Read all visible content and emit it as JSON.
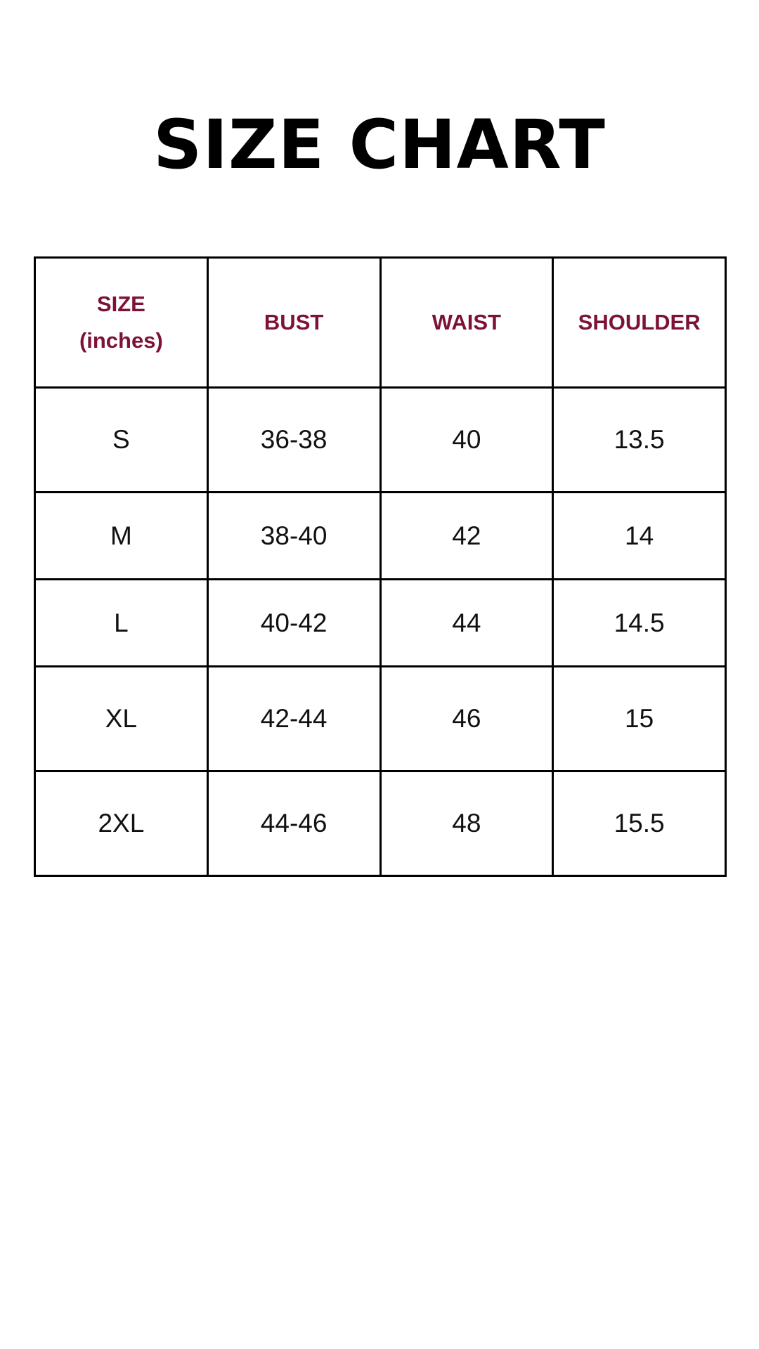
{
  "title": "SIZE CHART",
  "accent_color": "#7d1235",
  "table": {
    "headers": [
      [
        "SIZE",
        "(inches)"
      ],
      [
        "BUST"
      ],
      [
        "WAIST"
      ],
      [
        "SHOULDER"
      ]
    ],
    "rows": [
      [
        "S",
        "36-38",
        "40",
        "13.5"
      ],
      [
        "M",
        "38-40",
        "42",
        "14"
      ],
      [
        "L",
        "40-42",
        "44",
        "14.5"
      ],
      [
        "XL",
        "42-44",
        "46",
        "15"
      ],
      [
        "2XL",
        "44-46",
        "48",
        "15.5"
      ]
    ]
  }
}
